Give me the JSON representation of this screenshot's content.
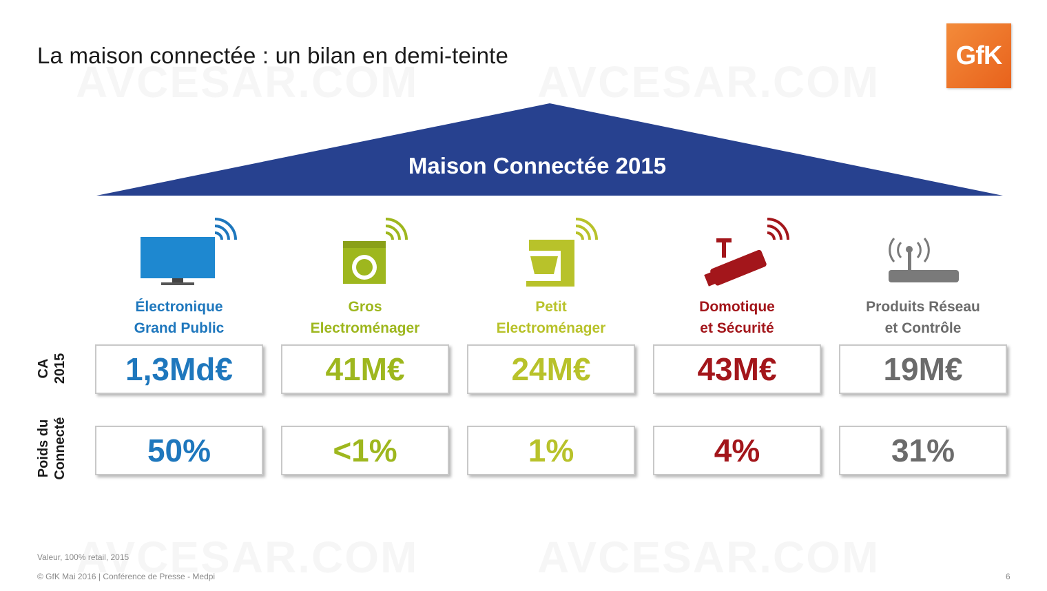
{
  "title": "La maison connectée : un bilan en demi-teinte",
  "logo_text": "GfK",
  "roof_title": "Maison Connectée 2015",
  "row_labels": {
    "ca": "CA\n2015",
    "poids": "Poids du\nConnecté"
  },
  "categories": [
    {
      "label": "Électronique\nGrand Public",
      "ca": "1,3Md€",
      "poids": "50%",
      "color": "#1e77bd",
      "icon": "tv-icon"
    },
    {
      "label": "Gros\nElectroménager",
      "ca": "41M€",
      "poids": "<1%",
      "color": "#9eb71e",
      "icon": "washing-machine-icon"
    },
    {
      "label": "Petit\nElectroménager",
      "ca": "24M€",
      "poids": "1%",
      "color": "#b8c22a",
      "icon": "food-processor-icon"
    },
    {
      "label": "Domotique\net Sécurité",
      "ca": "43M€",
      "poids": "4%",
      "color": "#a3161b",
      "icon": "security-camera-icon"
    },
    {
      "label": "Produits Réseau\net Contrôle",
      "ca": "19M€",
      "poids": "31%",
      "color": "#6b6b6b",
      "icon": "router-icon"
    }
  ],
  "footer": {
    "source": "Valeur, 100% retail, 2015",
    "copyright": "© GfK Mai 2016 | Conférence de Presse - Medpi",
    "page": "6"
  },
  "colors": {
    "roof": "#27418f",
    "logo": "#ea6a22"
  },
  "watermark": "AVCESAR.COM"
}
